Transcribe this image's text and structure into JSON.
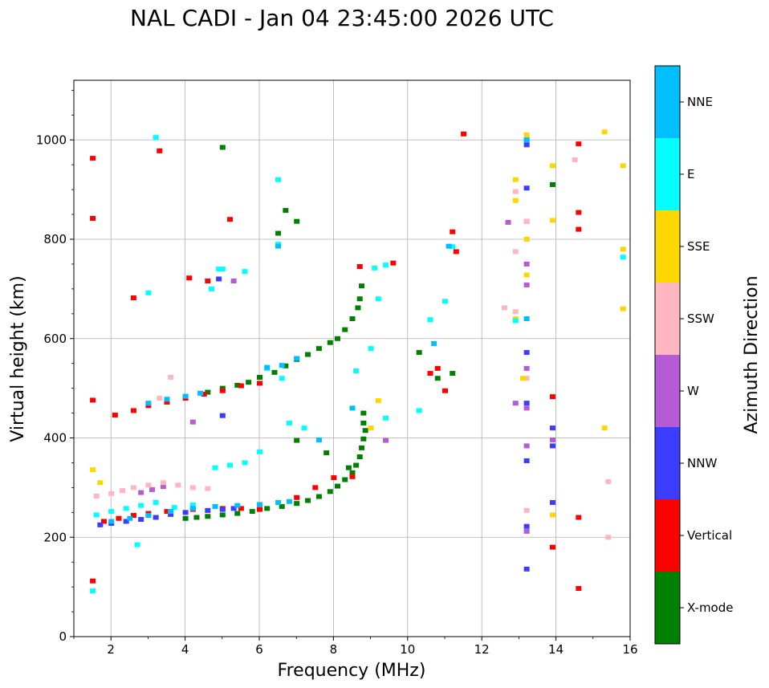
{
  "chart_data": {
    "type": "scatter",
    "title": "NAL CADI - Jan 04 23:45:00 2026 UTC",
    "xlabel": "Frequency (MHz)",
    "ylabel": "Virtual height (km)",
    "xlim": [
      1,
      16
    ],
    "ylim": [
      0,
      1120
    ],
    "xticks": [
      2,
      4,
      6,
      8,
      10,
      12,
      14,
      16
    ],
    "yticks": [
      0,
      200,
      400,
      600,
      800,
      1000
    ],
    "grid": true,
    "colorbar": {
      "label": "Azimuth Direction",
      "categories": [
        "X-mode",
        "Vertical",
        "NNW",
        "W",
        "SSW",
        "SSE",
        "E",
        "NNE"
      ],
      "colors": [
        "#008000",
        "#ff0000",
        "#3c3cff",
        "#b65bd6",
        "#ffb6c1",
        "#ffd700",
        "#00ffff",
        "#00bfff"
      ]
    },
    "series": [
      {
        "name": "X-mode",
        "points": [
          [
            4.0,
            238
          ],
          [
            4.3,
            240
          ],
          [
            4.6,
            242
          ],
          [
            5.0,
            245
          ],
          [
            5.4,
            248
          ],
          [
            5.8,
            252
          ],
          [
            6.2,
            258
          ],
          [
            6.6,
            262
          ],
          [
            7.0,
            268
          ],
          [
            7.3,
            274
          ],
          [
            7.6,
            282
          ],
          [
            7.9,
            292
          ],
          [
            8.1,
            303
          ],
          [
            8.3,
            316
          ],
          [
            8.5,
            330
          ],
          [
            8.6,
            345
          ],
          [
            8.7,
            362
          ],
          [
            8.75,
            380
          ],
          [
            8.8,
            398
          ],
          [
            8.85,
            415
          ],
          [
            8.8,
            430
          ],
          [
            8.8,
            450
          ],
          [
            4.6,
            492
          ],
          [
            5.0,
            500
          ],
          [
            5.4,
            506
          ],
          [
            5.7,
            512
          ],
          [
            6.0,
            522
          ],
          [
            6.4,
            532
          ],
          [
            6.7,
            545
          ],
          [
            7.0,
            558
          ],
          [
            7.3,
            568
          ],
          [
            7.6,
            580
          ],
          [
            7.9,
            592
          ],
          [
            8.1,
            600
          ],
          [
            8.3,
            618
          ],
          [
            8.5,
            640
          ],
          [
            8.65,
            662
          ],
          [
            8.7,
            680
          ],
          [
            8.75,
            706
          ],
          [
            6.5,
            812
          ],
          [
            6.7,
            858
          ],
          [
            7.0,
            836
          ],
          [
            5.0,
            985
          ],
          [
            13.9,
            910
          ],
          [
            10.3,
            572
          ],
          [
            10.8,
            520
          ],
          [
            11.2,
            530
          ],
          [
            8.4,
            340
          ],
          [
            7.8,
            370
          ],
          [
            7.0,
            395
          ]
        ]
      },
      {
        "name": "Vertical",
        "points": [
          [
            1.5,
            963
          ],
          [
            1.5,
            842
          ],
          [
            1.5,
            476
          ],
          [
            1.5,
            112
          ],
          [
            2.1,
            446
          ],
          [
            2.6,
            455
          ],
          [
            3.0,
            465
          ],
          [
            3.5,
            472
          ],
          [
            4.0,
            480
          ],
          [
            4.5,
            488
          ],
          [
            5.0,
            495
          ],
          [
            5.5,
            505
          ],
          [
            6.0,
            510
          ],
          [
            1.8,
            232
          ],
          [
            2.2,
            238
          ],
          [
            2.6,
            244
          ],
          [
            3.0,
            248
          ],
          [
            3.5,
            252
          ],
          [
            4.2,
            256
          ],
          [
            5.0,
            258
          ],
          [
            5.5,
            258
          ],
          [
            6.0,
            256
          ],
          [
            7.0,
            280
          ],
          [
            7.5,
            300
          ],
          [
            8.0,
            320
          ],
          [
            8.5,
            322
          ],
          [
            14.6,
            992
          ],
          [
            14.6,
            820
          ],
          [
            14.6,
            854
          ],
          [
            14.6,
            240
          ],
          [
            14.6,
            97
          ],
          [
            11.5,
            1012
          ],
          [
            11.3,
            775
          ],
          [
            11.2,
            815
          ],
          [
            13.9,
            483
          ],
          [
            13.9,
            180
          ],
          [
            10.8,
            540
          ],
          [
            10.6,
            530
          ],
          [
            11.0,
            495
          ],
          [
            9.6,
            752
          ],
          [
            8.7,
            745
          ],
          [
            3.3,
            978
          ],
          [
            5.2,
            840
          ],
          [
            4.1,
            722
          ],
          [
            4.6,
            716
          ],
          [
            2.6,
            682
          ]
        ]
      },
      {
        "name": "NNW",
        "points": [
          [
            1.7,
            225
          ],
          [
            2.0,
            228
          ],
          [
            2.4,
            232
          ],
          [
            2.8,
            236
          ],
          [
            3.2,
            240
          ],
          [
            3.6,
            246
          ],
          [
            4.0,
            250
          ],
          [
            4.6,
            254
          ],
          [
            5.0,
            256
          ],
          [
            5.3,
            258
          ],
          [
            13.2,
            1000
          ],
          [
            13.2,
            903
          ],
          [
            13.2,
            990
          ],
          [
            13.2,
            572
          ],
          [
            13.2,
            470
          ],
          [
            13.2,
            354
          ],
          [
            13.2,
            222
          ],
          [
            13.2,
            136
          ],
          [
            13.9,
            420
          ],
          [
            13.9,
            384
          ],
          [
            13.9,
            270
          ],
          [
            5.0,
            445
          ],
          [
            4.9,
            720
          ]
        ]
      },
      {
        "name": "W",
        "points": [
          [
            2.8,
            290
          ],
          [
            3.1,
            296
          ],
          [
            3.4,
            302
          ],
          [
            13.2,
            836
          ],
          [
            13.2,
            750
          ],
          [
            13.2,
            708
          ],
          [
            13.2,
            540
          ],
          [
            13.2,
            460
          ],
          [
            13.2,
            384
          ],
          [
            13.2,
            212
          ],
          [
            12.7,
            834
          ],
          [
            13.9,
            396
          ],
          [
            12.9,
            470
          ],
          [
            4.2,
            432
          ],
          [
            9.4,
            395
          ],
          [
            5.3,
            716
          ]
        ]
      },
      {
        "name": "SSW",
        "points": [
          [
            1.6,
            283
          ],
          [
            2.0,
            288
          ],
          [
            2.3,
            294
          ],
          [
            2.6,
            300
          ],
          [
            3.0,
            305
          ],
          [
            3.4,
            310
          ],
          [
            3.8,
            305
          ],
          [
            4.2,
            300
          ],
          [
            4.6,
            298
          ],
          [
            13.2,
            836
          ],
          [
            12.9,
            775
          ],
          [
            12.9,
            896
          ],
          [
            12.9,
            654
          ],
          [
            13.2,
            254
          ],
          [
            14.5,
            960
          ],
          [
            15.4,
            312
          ],
          [
            15.4,
            200
          ],
          [
            12.6,
            662
          ],
          [
            3.6,
            522
          ],
          [
            3.3,
            480
          ],
          [
            13.2,
            520
          ]
        ]
      },
      {
        "name": "SSE",
        "points": [
          [
            1.5,
            336
          ],
          [
            1.7,
            310
          ],
          [
            13.2,
            1010
          ],
          [
            12.9,
            920
          ],
          [
            12.9,
            878
          ],
          [
            13.2,
            800
          ],
          [
            13.2,
            728
          ],
          [
            13.9,
            948
          ],
          [
            13.9,
            838
          ],
          [
            13.9,
            245
          ],
          [
            15.3,
            1016
          ],
          [
            15.8,
            948
          ],
          [
            15.8,
            780
          ],
          [
            15.8,
            660
          ],
          [
            15.3,
            420
          ],
          [
            9.0,
            420
          ],
          [
            9.2,
            475
          ],
          [
            12.9,
            640
          ],
          [
            13.1,
            520
          ]
        ]
      },
      {
        "name": "E",
        "points": [
          [
            1.6,
            245
          ],
          [
            2.0,
            252
          ],
          [
            2.4,
            258
          ],
          [
            2.8,
            264
          ],
          [
            3.2,
            270
          ],
          [
            3.7,
            260
          ],
          [
            4.2,
            265
          ],
          [
            4.8,
            340
          ],
          [
            5.2,
            345
          ],
          [
            5.6,
            350
          ],
          [
            6.0,
            372
          ],
          [
            3.0,
            692
          ],
          [
            4.7,
            700
          ],
          [
            5.0,
            740
          ],
          [
            5.6,
            735
          ],
          [
            6.5,
            790
          ],
          [
            6.5,
            920
          ],
          [
            6.2,
            540
          ],
          [
            6.6,
            520
          ],
          [
            6.8,
            430
          ],
          [
            7.2,
            420
          ],
          [
            8.6,
            535
          ],
          [
            9.1,
            742
          ],
          [
            9.4,
            748
          ],
          [
            9.2,
            680
          ],
          [
            9.4,
            440
          ],
          [
            10.3,
            455
          ],
          [
            10.6,
            638
          ],
          [
            11.0,
            675
          ],
          [
            11.2,
            785
          ],
          [
            12.9,
            636
          ],
          [
            15.8,
            764
          ],
          [
            2.7,
            185
          ],
          [
            1.5,
            92
          ],
          [
            3.2,
            1005
          ],
          [
            4.9,
            740
          ],
          [
            9.0,
            580
          ]
        ]
      },
      {
        "name": "NNE",
        "points": [
          [
            2.0,
            232
          ],
          [
            2.5,
            238
          ],
          [
            3.0,
            244
          ],
          [
            3.6,
            252
          ],
          [
            4.2,
            258
          ],
          [
            4.8,
            262
          ],
          [
            5.4,
            264
          ],
          [
            6.0,
            266
          ],
          [
            6.5,
            270
          ],
          [
            6.8,
            272
          ],
          [
            3.0,
            470
          ],
          [
            3.5,
            478
          ],
          [
            4.0,
            484
          ],
          [
            4.4,
            490
          ],
          [
            6.2,
            542
          ],
          [
            6.6,
            546
          ],
          [
            7.0,
            560
          ],
          [
            10.7,
            590
          ],
          [
            11.1,
            786
          ],
          [
            13.2,
            1000
          ],
          [
            13.2,
            640
          ],
          [
            6.5,
            786
          ],
          [
            7.6,
            396
          ],
          [
            8.5,
            460
          ]
        ]
      }
    ]
  }
}
